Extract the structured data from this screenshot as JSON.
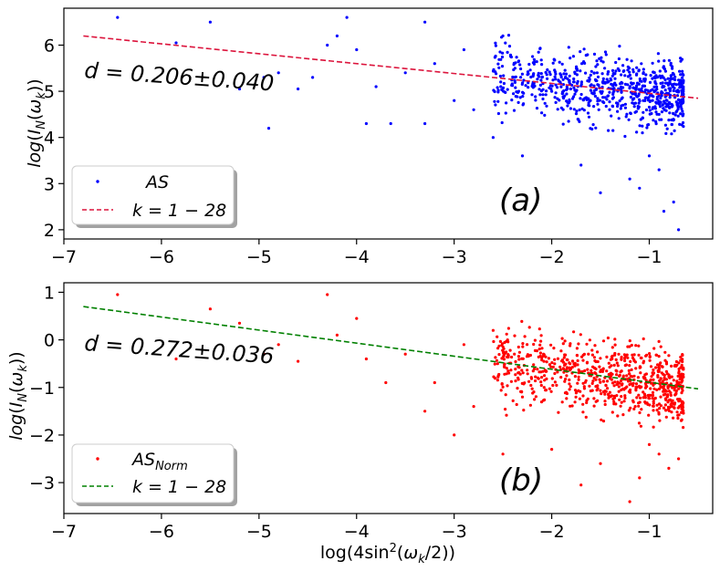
{
  "chart_data": [
    {
      "type": "scatter",
      "panel_label": "(a)",
      "ylabel": "log(I_N(ω_k))",
      "xlabel": "",
      "xlim": [
        -7,
        -0.35
      ],
      "ylim": [
        1.8,
        6.8
      ],
      "xticks": [
        -7,
        -6,
        -5,
        -4,
        -3,
        -2,
        -1
      ],
      "xtick_labels": [
        "−7",
        "−6",
        "−5",
        "−4",
        "−3",
        "−2",
        "−1"
      ],
      "yticks": [
        2,
        3,
        4,
        5,
        6
      ],
      "ytick_labels": [
        "2",
        "3",
        "4",
        "5",
        "6"
      ],
      "annotation": "d = 0.206±0.040",
      "series": [
        {
          "name": "AS",
          "kind": "scatter",
          "color": "#0000ff",
          "cloud_x": [
            -0.65,
            -2.6
          ],
          "cloud_y_center": 5.1,
          "cloud_y_spread": 0.55,
          "points": [
            [
              -6.45,
              6.6
            ],
            [
              -5.85,
              6.05
            ],
            [
              -5.5,
              6.5
            ],
            [
              -5.2,
              5.05
            ],
            [
              -4.95,
              5.3
            ],
            [
              -4.9,
              4.2
            ],
            [
              -4.8,
              5.4
            ],
            [
              -4.6,
              5.05
            ],
            [
              -4.45,
              5.3
            ],
            [
              -4.3,
              6.0
            ],
            [
              -4.2,
              6.2
            ],
            [
              -4.1,
              6.6
            ],
            [
              -4.0,
              5.9
            ],
            [
              -3.9,
              4.3
            ],
            [
              -3.8,
              5.1
            ],
            [
              -3.65,
              4.3
            ],
            [
              -3.5,
              5.4
            ],
            [
              -3.3,
              4.3
            ],
            [
              -3.3,
              6.5
            ],
            [
              -3.2,
              5.6
            ],
            [
              -3.0,
              4.8
            ],
            [
              -2.9,
              5.9
            ],
            [
              -2.8,
              4.6
            ],
            [
              -2.6,
              4.0
            ],
            [
              -2.5,
              6.2
            ],
            [
              -2.3,
              3.6
            ],
            [
              -2.0,
              5.0
            ],
            [
              -1.7,
              3.4
            ],
            [
              -1.5,
              2.8
            ],
            [
              -1.2,
              3.1
            ],
            [
              -1.1,
              2.9
            ],
            [
              -0.85,
              2.4
            ],
            [
              -0.75,
              2.6
            ],
            [
              -0.7,
              2.0
            ],
            [
              -0.9,
              3.3
            ],
            [
              -1.0,
              3.6
            ]
          ]
        },
        {
          "name": "k = 1 − 28",
          "kind": "line",
          "color": "#dc143c",
          "x": [
            -6.8,
            -0.5
          ],
          "y": [
            6.2,
            4.85
          ]
        }
      ]
    },
    {
      "type": "scatter",
      "panel_label": "(b)",
      "ylabel": "log(I_N(ω_k))",
      "xlabel": "log(4sin²(ω_k/2))",
      "xlim": [
        -7,
        -0.35
      ],
      "ylim": [
        -3.65,
        1.2
      ],
      "xticks": [
        -7,
        -6,
        -5,
        -4,
        -3,
        -2,
        -1
      ],
      "xtick_labels": [
        "−7",
        "−6",
        "−5",
        "−4",
        "−3",
        "−2",
        "−1"
      ],
      "yticks": [
        -3,
        -2,
        -1,
        0,
        1
      ],
      "ytick_labels": [
        "−3",
        "−2",
        "−1",
        "0",
        "1"
      ],
      "annotation": "d = 0.272±0.036",
      "series": [
        {
          "name": "AS_Norm",
          "kind": "scatter",
          "color": "#ff0000",
          "cloud_x": [
            -0.65,
            -2.6
          ],
          "cloud_y_center": -0.9,
          "cloud_y_spread": 0.55,
          "points": [
            [
              -6.45,
              0.95
            ],
            [
              -5.85,
              -0.4
            ],
            [
              -5.5,
              0.65
            ],
            [
              -5.2,
              0.35
            ],
            [
              -4.95,
              -0.3
            ],
            [
              -4.8,
              -0.1
            ],
            [
              -4.6,
              -0.45
            ],
            [
              -4.3,
              0.95
            ],
            [
              -4.2,
              0.1
            ],
            [
              -4.0,
              0.45
            ],
            [
              -3.9,
              -0.4
            ],
            [
              -3.7,
              -0.9
            ],
            [
              -3.5,
              -0.3
            ],
            [
              -3.3,
              -1.5
            ],
            [
              -3.2,
              -0.9
            ],
            [
              -3.0,
              -2.0
            ],
            [
              -2.9,
              -0.1
            ],
            [
              -2.8,
              -1.4
            ],
            [
              -2.6,
              0.2
            ],
            [
              -2.5,
              -2.4
            ],
            [
              -2.3,
              -1.2
            ],
            [
              -2.0,
              -2.3
            ],
            [
              -1.7,
              -3.05
            ],
            [
              -1.5,
              -2.6
            ],
            [
              -1.2,
              -3.4
            ],
            [
              -1.1,
              -2.9
            ],
            [
              -0.9,
              -2.4
            ],
            [
              -0.8,
              -2.7
            ],
            [
              -0.7,
              -2.5
            ],
            [
              -1.0,
              -2.2
            ]
          ]
        },
        {
          "name": "k = 1 − 28",
          "kind": "line",
          "color": "#008000",
          "x": [
            -6.8,
            -0.5
          ],
          "y": [
            0.7,
            -1.03
          ]
        }
      ]
    }
  ]
}
